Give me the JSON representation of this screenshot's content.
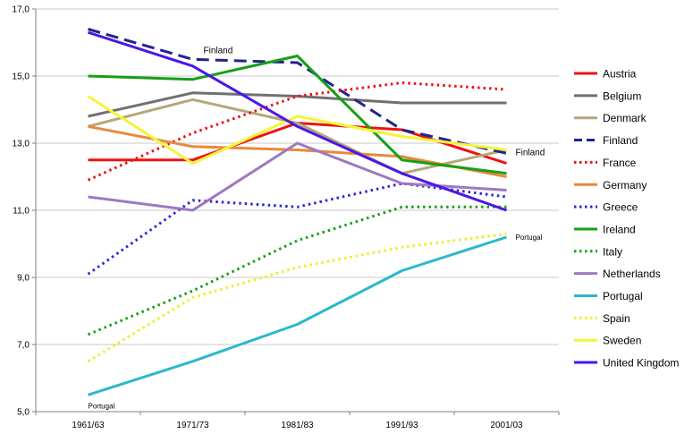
{
  "chart_data": {
    "type": "line",
    "categories": [
      "1961/63",
      "1971/73",
      "1981/83",
      "1991/93",
      "2001/03"
    ],
    "ylim": [
      5,
      17
    ],
    "yticks": [
      "5,0",
      "7,0",
      "9,0",
      "11,0",
      "13,0",
      "15,0",
      "17,0"
    ],
    "ytick_values": [
      5,
      7,
      9,
      11,
      13,
      15,
      17
    ],
    "grid": "horizontal",
    "legend_position": "right",
    "series": [
      {
        "name": "Austria",
        "values": [
          12.5,
          12.5,
          13.6,
          13.4,
          12.4
        ],
        "color": "#ee1111",
        "dash": "solid"
      },
      {
        "name": "Belgium",
        "values": [
          13.8,
          14.5,
          14.4,
          14.2,
          14.2
        ],
        "color": "#707070",
        "dash": "solid"
      },
      {
        "name": "Denmark",
        "values": [
          13.5,
          14.3,
          13.6,
          12.1,
          12.8
        ],
        "color": "#b5a878",
        "dash": "solid"
      },
      {
        "name": "Finland",
        "values": [
          16.4,
          15.5,
          15.4,
          13.4,
          12.7
        ],
        "color": "#23238c",
        "dash": "dashed"
      },
      {
        "name": "France",
        "values": [
          11.9,
          13.3,
          14.4,
          14.8,
          14.6
        ],
        "color": "#ee1111",
        "dash": "dotted"
      },
      {
        "name": "Germany",
        "values": [
          13.5,
          12.9,
          12.8,
          12.6,
          12.0
        ],
        "color": "#e8893a",
        "dash": "solid"
      },
      {
        "name": "Greece",
        "values": [
          9.1,
          11.3,
          11.1,
          11.8,
          11.4
        ],
        "color": "#2a2ad8",
        "dash": "dotted"
      },
      {
        "name": "Ireland",
        "values": [
          15.0,
          14.9,
          15.6,
          12.5,
          12.1
        ],
        "color": "#16a016",
        "dash": "solid"
      },
      {
        "name": "Italy",
        "values": [
          7.3,
          8.6,
          10.1,
          11.1,
          11.1
        ],
        "color": "#16a016",
        "dash": "dotted"
      },
      {
        "name": "Netherlands",
        "values": [
          11.4,
          11.0,
          13.0,
          11.8,
          11.6
        ],
        "color": "#9f78bf",
        "dash": "solid"
      },
      {
        "name": "Portugal",
        "values": [
          5.5,
          6.5,
          7.6,
          9.2,
          10.2
        ],
        "color": "#2ab8cc",
        "dash": "solid"
      },
      {
        "name": "Spain",
        "values": [
          6.5,
          8.4,
          9.3,
          9.9,
          10.3
        ],
        "color": "#eeee22",
        "dash": "dotted"
      },
      {
        "name": "Sweden",
        "values": [
          14.4,
          12.4,
          13.8,
          13.2,
          12.8
        ],
        "color": "#f4f438",
        "dash": "solid"
      },
      {
        "name": "United Kingdom",
        "values": [
          16.3,
          15.3,
          13.5,
          12.1,
          11.0
        ],
        "color": "#4b16e8",
        "dash": "solid"
      }
    ],
    "annotations": [
      {
        "text": "Finland",
        "series": "Finland",
        "point": 1,
        "size": "normal"
      },
      {
        "text": "Finland",
        "series": "Finland",
        "point": 4,
        "size": "normal"
      },
      {
        "text": "Portugal",
        "series": "Portugal",
        "point": 0,
        "size": "small"
      },
      {
        "text": "Portugal",
        "series": "Portugal",
        "point": 4,
        "size": "small"
      }
    ]
  }
}
